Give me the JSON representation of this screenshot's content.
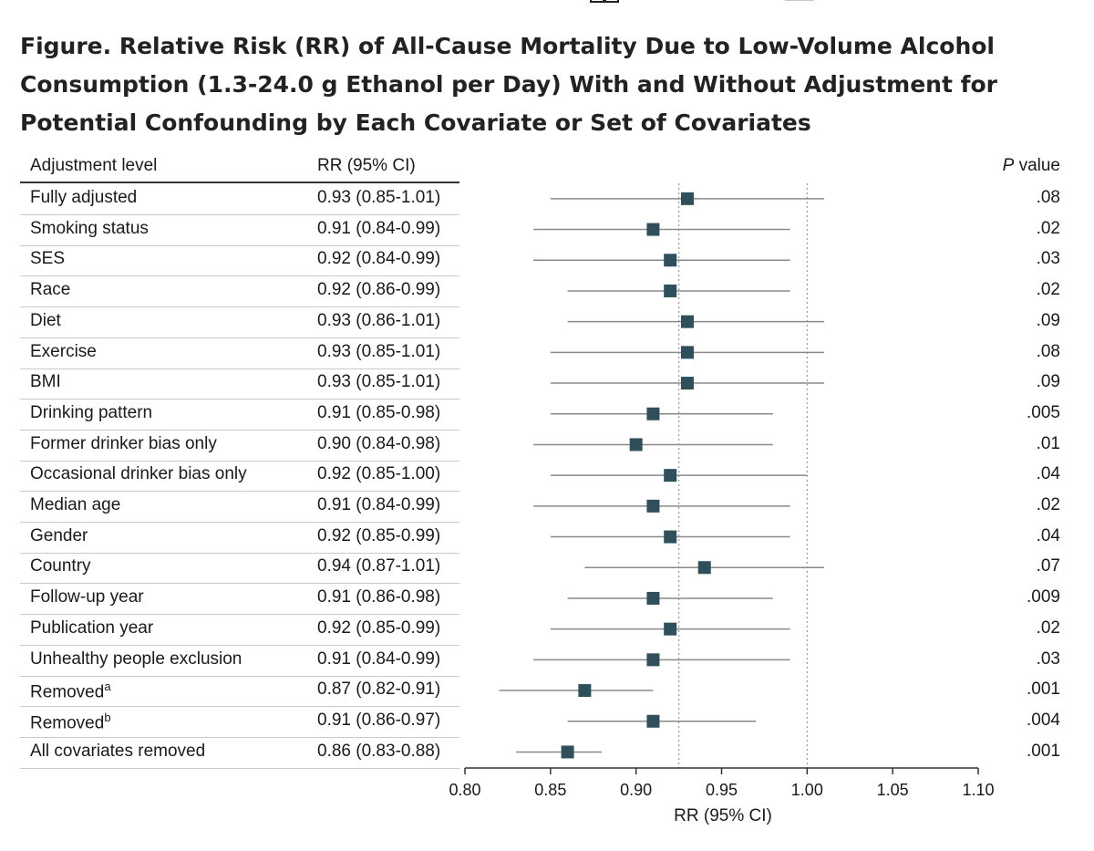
{
  "figure": {
    "title": "Figure.  Relative Risk (RR) of All-Cause Mortality Due to Low-Volume Alcohol Consumption (1.3-24.0 g Ethanol per Day) With and Without Adjustment for Potential Confounding by Each Covariate or Set of Covariates"
  },
  "table_headers": {
    "label": "Adjustment level",
    "rr": "RR (95% CI)",
    "p_prefix": "P",
    "p_suffix": " value"
  },
  "colors": {
    "marker": "#2f4f5b",
    "ci_line": "#8a8a8a",
    "ref_line": "#999999"
  },
  "chart_data": {
    "type": "forest",
    "xlabel": "RR (95% CI)",
    "xlim": [
      0.8,
      1.1
    ],
    "xticks": [
      "0.80",
      "0.85",
      "0.90",
      "0.95",
      "1.00",
      "1.05",
      "1.10"
    ],
    "reference_lines": [
      0.925,
      1.0
    ],
    "rows": [
      {
        "label": "Fully adjusted",
        "sup": "",
        "rr": 0.93,
        "lo": 0.85,
        "hi": 1.01,
        "rr_text": "0.93 (0.85-1.01)",
        "p": ".08"
      },
      {
        "label": "Smoking status",
        "sup": "",
        "rr": 0.91,
        "lo": 0.84,
        "hi": 0.99,
        "rr_text": "0.91 (0.84-0.99)",
        "p": ".02"
      },
      {
        "label": "SES",
        "sup": "",
        "rr": 0.92,
        "lo": 0.84,
        "hi": 0.99,
        "rr_text": "0.92 (0.84-0.99)",
        "p": ".03"
      },
      {
        "label": "Race",
        "sup": "",
        "rr": 0.92,
        "lo": 0.86,
        "hi": 0.99,
        "rr_text": "0.92 (0.86-0.99)",
        "p": ".02"
      },
      {
        "label": "Diet",
        "sup": "",
        "rr": 0.93,
        "lo": 0.86,
        "hi": 1.01,
        "rr_text": "0.93 (0.86-1.01)",
        "p": ".09"
      },
      {
        "label": "Exercise",
        "sup": "",
        "rr": 0.93,
        "lo": 0.85,
        "hi": 1.01,
        "rr_text": "0.93 (0.85-1.01)",
        "p": ".08"
      },
      {
        "label": "BMI",
        "sup": "",
        "rr": 0.93,
        "lo": 0.85,
        "hi": 1.01,
        "rr_text": "0.93 (0.85-1.01)",
        "p": ".09"
      },
      {
        "label": "Drinking pattern",
        "sup": "",
        "rr": 0.91,
        "lo": 0.85,
        "hi": 0.98,
        "rr_text": "0.91 (0.85-0.98)",
        "p": ".005"
      },
      {
        "label": "Former drinker bias only",
        "sup": "",
        "rr": 0.9,
        "lo": 0.84,
        "hi": 0.98,
        "rr_text": "0.90 (0.84-0.98)",
        "p": ".01"
      },
      {
        "label": "Occasional drinker bias only",
        "sup": "",
        "rr": 0.92,
        "lo": 0.85,
        "hi": 1.0,
        "rr_text": "0.92 (0.85-1.00)",
        "p": ".04"
      },
      {
        "label": "Median age",
        "sup": "",
        "rr": 0.91,
        "lo": 0.84,
        "hi": 0.99,
        "rr_text": "0.91 (0.84-0.99)",
        "p": ".02"
      },
      {
        "label": "Gender",
        "sup": "",
        "rr": 0.92,
        "lo": 0.85,
        "hi": 0.99,
        "rr_text": "0.92 (0.85-0.99)",
        "p": ".04"
      },
      {
        "label": "Country",
        "sup": "",
        "rr": 0.94,
        "lo": 0.87,
        "hi": 1.01,
        "rr_text": "0.94 (0.87-1.01)",
        "p": ".07"
      },
      {
        "label": "Follow-up year",
        "sup": "",
        "rr": 0.91,
        "lo": 0.86,
        "hi": 0.98,
        "rr_text": "0.91 (0.86-0.98)",
        "p": ".009"
      },
      {
        "label": "Publication year",
        "sup": "",
        "rr": 0.92,
        "lo": 0.85,
        "hi": 0.99,
        "rr_text": "0.92 (0.85-0.99)",
        "p": ".02"
      },
      {
        "label": "Unhealthy people exclusion",
        "sup": "",
        "rr": 0.91,
        "lo": 0.84,
        "hi": 0.99,
        "rr_text": "0.91 (0.84-0.99)",
        "p": ".03"
      },
      {
        "label": "Removed",
        "sup": "a",
        "rr": 0.87,
        "lo": 0.82,
        "hi": 0.91,
        "rr_text": "0.87 (0.82-0.91)",
        "p": ".001"
      },
      {
        "label": "Removed",
        "sup": "b",
        "rr": 0.91,
        "lo": 0.86,
        "hi": 0.97,
        "rr_text": "0.91 (0.86-0.97)",
        "p": ".004"
      },
      {
        "label": "All covariates removed",
        "sup": "",
        "rr": 0.86,
        "lo": 0.83,
        "hi": 0.88,
        "rr_text": "0.86 (0.83-0.88)",
        "p": ".001"
      }
    ]
  }
}
